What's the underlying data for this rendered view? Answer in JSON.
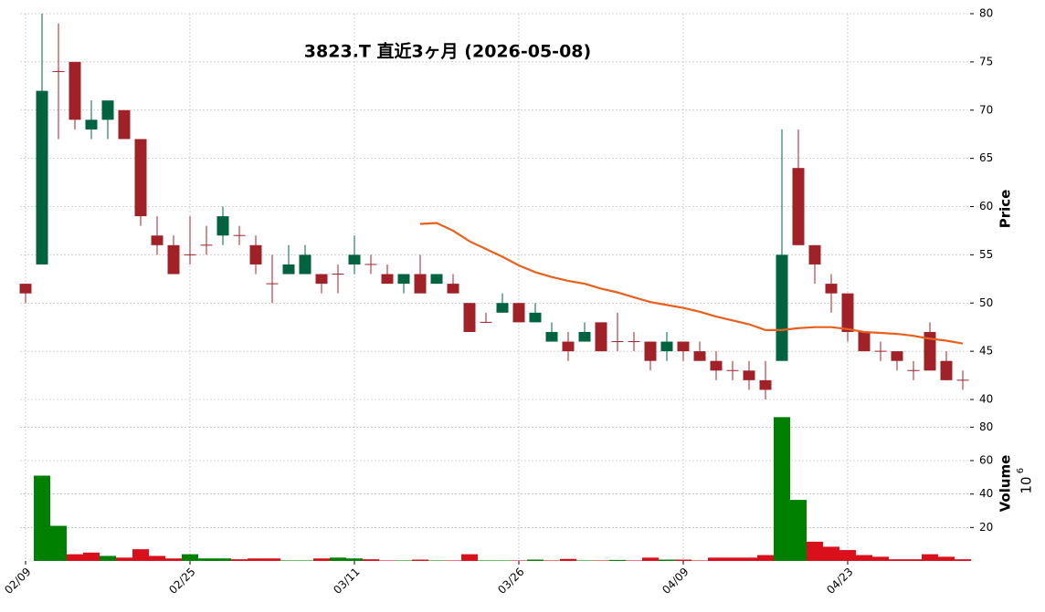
{
  "chart_data": {
    "type": "candlestick",
    "title": "3823.T  直近3ヶ月  (2026-05-08)",
    "categories": [
      "02/09",
      null,
      null,
      null,
      null,
      null,
      null,
      null,
      null,
      null,
      "02/25",
      null,
      null,
      null,
      null,
      null,
      null,
      null,
      null,
      null,
      "03/11",
      null,
      null,
      null,
      null,
      null,
      null,
      null,
      null,
      null,
      "03/26",
      null,
      null,
      null,
      null,
      null,
      null,
      null,
      null,
      null,
      "04/09",
      null,
      null,
      null,
      null,
      null,
      null,
      null,
      null,
      null,
      "04/23",
      null,
      null,
      null,
      null,
      null,
      null,
      null
    ],
    "open": [
      52,
      54,
      74,
      75,
      68,
      69,
      70,
      67,
      57,
      56,
      55,
      56,
      57,
      57,
      56,
      52,
      53,
      53,
      53,
      53,
      54,
      54,
      53,
      52,
      53,
      52,
      52,
      50,
      48,
      49,
      50,
      48,
      46,
      46,
      46,
      48,
      46,
      46,
      46,
      45,
      46,
      45,
      44,
      43,
      43,
      42,
      44,
      64,
      56,
      52,
      51,
      47,
      45,
      45,
      43,
      47,
      44,
      42
    ],
    "high": [
      52,
      80,
      79,
      75,
      71,
      71,
      70,
      67,
      59,
      57,
      59,
      58,
      60,
      58,
      57,
      55,
      56,
      56,
      53,
      54,
      57,
      55,
      54,
      53,
      55,
      53,
      53,
      50,
      49,
      51,
      50,
      50,
      48,
      47,
      48,
      48,
      49,
      47,
      46,
      47,
      46,
      46,
      45,
      44,
      44,
      44,
      68,
      68,
      56,
      53,
      51,
      47,
      46,
      45,
      44,
      48,
      45,
      43
    ],
    "low": [
      50,
      54,
      67,
      68,
      67,
      67,
      67,
      58,
      55,
      53,
      54,
      55,
      56,
      56,
      53,
      50,
      53,
      53,
      51,
      51,
      53,
      53,
      52,
      51,
      51,
      52,
      51,
      47,
      48,
      49,
      48,
      48,
      46,
      44,
      46,
      45,
      45,
      45,
      43,
      44,
      44,
      44,
      42,
      42,
      41,
      40,
      44,
      56,
      52,
      49,
      46,
      45,
      44,
      43,
      42,
      43,
      42,
      41
    ],
    "close": [
      51,
      72,
      74,
      69,
      69,
      71,
      67,
      59,
      56,
      53,
      55,
      56,
      59,
      57,
      54,
      52,
      54,
      55,
      52,
      53,
      55,
      54,
      52,
      53,
      51,
      53,
      51,
      47,
      48,
      50,
      48,
      49,
      47,
      45,
      47,
      45,
      46,
      46,
      44,
      46,
      45,
      44,
      43,
      43,
      42,
      41,
      55,
      56,
      54,
      51,
      47,
      45,
      45,
      44,
      43,
      43,
      42,
      42
    ],
    "up_color": "#006340",
    "down_color": "#a02128",
    "ylabel": "Price",
    "ylim": [
      40,
      80
    ],
    "yticks": [
      40,
      45,
      50,
      55,
      60,
      65,
      70,
      75,
      80
    ],
    "grid": true,
    "ma": {
      "color": "#e8601c",
      "values": [
        null,
        null,
        null,
        null,
        null,
        null,
        null,
        null,
        null,
        null,
        null,
        null,
        null,
        null,
        null,
        null,
        null,
        null,
        null,
        null,
        null,
        null,
        null,
        null,
        58.2,
        58.3,
        57.5,
        56.4,
        55.6,
        54.8,
        53.9,
        53.2,
        52.7,
        52.3,
        52.0,
        51.5,
        51.1,
        50.6,
        50.1,
        49.8,
        49.5,
        49.1,
        48.6,
        48.2,
        47.8,
        47.2,
        47.2,
        47.4,
        47.5,
        47.5,
        47.3,
        47.0,
        46.9,
        46.8,
        46.6,
        46.3,
        46.1,
        45.8
      ]
    },
    "volume": {
      "ylabel": "Volume",
      "scale_base": 10,
      "scale_exponent": 6,
      "ylim": [
        0,
        90
      ],
      "yticks": [
        20,
        40,
        60,
        80
      ],
      "up_color": "#008000",
      "down_color": "#d9101c",
      "values": [
        0,
        51,
        21,
        4,
        5,
        3,
        2,
        7,
        3,
        1.5,
        4,
        1.5,
        1.5,
        1,
        1.5,
        1.5,
        0.3,
        0.3,
        1.5,
        2,
        1.5,
        1,
        0.3,
        0.3,
        0.8,
        0.3,
        0.3,
        4,
        0.3,
        0.3,
        0.3,
        0.8,
        0.3,
        1.2,
        0.3,
        0.3,
        0.6,
        0.3,
        2,
        0.8,
        0.8,
        0.3,
        2,
        2,
        2,
        3.5,
        86,
        36.5,
        11.5,
        8.5,
        6.5,
        3.5,
        2.5,
        1,
        1,
        4,
        2.5,
        1
      ]
    }
  }
}
